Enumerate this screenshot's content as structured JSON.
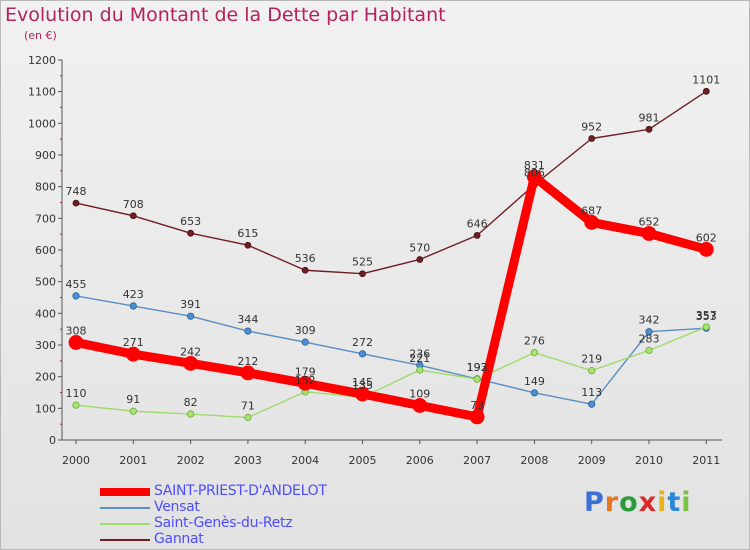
{
  "header": {
    "title": "Evolution du Montant de la Dette par Habitant",
    "subtitle": "(en €)"
  },
  "branding": {
    "name": "Proxiti"
  },
  "chart_data": {
    "type": "line",
    "x": [
      "2000",
      "2001",
      "2002",
      "2003",
      "2004",
      "2005",
      "2006",
      "2007",
      "2008",
      "2009",
      "2010",
      "2011"
    ],
    "ylim": [
      0,
      1200
    ],
    "yticks": [
      0,
      100,
      200,
      300,
      400,
      500,
      600,
      700,
      800,
      900,
      1000,
      1100,
      1200
    ],
    "grid": false,
    "legend_position": "bottom-left",
    "series": [
      {
        "name": "SAINT-PRIEST-D'ANDELOT",
        "color": "#ff0000",
        "values": [
          308,
          271,
          242,
          212,
          179,
          145,
          109,
          73,
          831,
          687,
          652,
          602
        ]
      },
      {
        "name": "Vensat",
        "color": "#5b8ec2",
        "values": [
          455,
          423,
          391,
          344,
          309,
          272,
          236,
          193,
          149,
          113,
          342,
          353
        ]
      },
      {
        "name": "Saint-Genès-du-Retz",
        "color": "#9fdb6c",
        "values": [
          110,
          91,
          82,
          71,
          152,
          135,
          221,
          192,
          276,
          219,
          283,
          357
        ]
      },
      {
        "name": "Gannat",
        "color": "#6e1f24",
        "values": [
          748,
          708,
          653,
          615,
          536,
          525,
          570,
          646,
          806,
          952,
          981,
          1101
        ]
      }
    ]
  }
}
